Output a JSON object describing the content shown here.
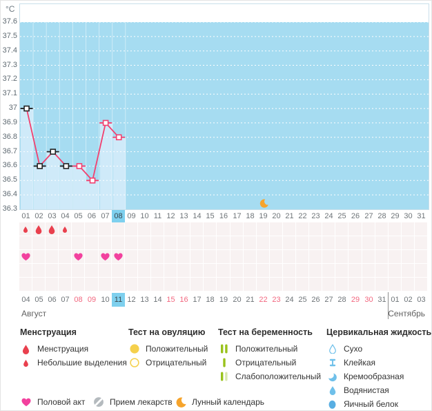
{
  "chart_data": {
    "type": "line",
    "unit": "°C",
    "ylim": [
      36.3,
      37.6
    ],
    "grid": "dotted-horizontal",
    "y_ticks": [
      "37.6",
      "37.5",
      "37.4",
      "37.3",
      "37.2",
      "37.1",
      "37",
      "36.9",
      "36.8",
      "36.7",
      "36.6",
      "36.5",
      "36.4",
      "36.3"
    ],
    "x_days": [
      "01",
      "02",
      "03",
      "04",
      "05",
      "06",
      "07",
      "08",
      "09",
      "10",
      "11",
      "12",
      "13",
      "14",
      "15",
      "16",
      "17",
      "18",
      "19",
      "20",
      "21",
      "22",
      "23",
      "24",
      "25",
      "26",
      "27",
      "28",
      "29",
      "30",
      "31"
    ],
    "selected_day": 8,
    "points": [
      {
        "day": 1,
        "temp": 37.0,
        "excluded": true
      },
      {
        "day": 2,
        "temp": 36.6,
        "excluded": true
      },
      {
        "day": 3,
        "temp": 36.7,
        "excluded": true
      },
      {
        "day": 4,
        "temp": 36.6,
        "excluded": true
      },
      {
        "day": 5,
        "temp": 36.6,
        "excluded": false
      },
      {
        "day": 6,
        "temp": 36.5,
        "excluded": false
      },
      {
        "day": 7,
        "temp": 36.9,
        "excluded": false
      },
      {
        "day": 8,
        "temp": 36.8,
        "excluded": false
      }
    ],
    "lunar_event_day": 19
  },
  "events": {
    "menstruation": [
      {
        "day": 1,
        "intensity": "light"
      },
      {
        "day": 2,
        "intensity": "heavy"
      },
      {
        "day": 3,
        "intensity": "heavy"
      },
      {
        "day": 4,
        "intensity": "light"
      }
    ],
    "intercourse_days": [
      1,
      5,
      7,
      8
    ],
    "grid_rows": 5
  },
  "calendar": {
    "month_left": "Август",
    "month_right": "Сентябрь",
    "today_index": 7,
    "september_start_index": 28,
    "dates": [
      {
        "label": "04",
        "weekend": false
      },
      {
        "label": "05",
        "weekend": false
      },
      {
        "label": "06",
        "weekend": false
      },
      {
        "label": "07",
        "weekend": false
      },
      {
        "label": "08",
        "weekend": true
      },
      {
        "label": "09",
        "weekend": true
      },
      {
        "label": "10",
        "weekend": false
      },
      {
        "label": "11",
        "weekend": false
      },
      {
        "label": "12",
        "weekend": false
      },
      {
        "label": "13",
        "weekend": false
      },
      {
        "label": "14",
        "weekend": false
      },
      {
        "label": "15",
        "weekend": true
      },
      {
        "label": "16",
        "weekend": true
      },
      {
        "label": "17",
        "weekend": false
      },
      {
        "label": "18",
        "weekend": false
      },
      {
        "label": "19",
        "weekend": false
      },
      {
        "label": "20",
        "weekend": false
      },
      {
        "label": "21",
        "weekend": false
      },
      {
        "label": "22",
        "weekend": true
      },
      {
        "label": "23",
        "weekend": true
      },
      {
        "label": "24",
        "weekend": false
      },
      {
        "label": "25",
        "weekend": false
      },
      {
        "label": "26",
        "weekend": false
      },
      {
        "label": "27",
        "weekend": false
      },
      {
        "label": "28",
        "weekend": false
      },
      {
        "label": "29",
        "weekend": true
      },
      {
        "label": "30",
        "weekend": true
      },
      {
        "label": "31",
        "weekend": false
      },
      {
        "label": "01",
        "weekend": false
      },
      {
        "label": "02",
        "weekend": false
      },
      {
        "label": "03",
        "weekend": false
      }
    ]
  },
  "legend": {
    "groups": [
      {
        "title": "Менструация",
        "items": [
          {
            "icon": "menstruation-drop",
            "label": "Менструация"
          },
          {
            "icon": "spotting-drop",
            "label": "Небольшие выделения"
          }
        ]
      },
      {
        "title": "Тест на овуляцию",
        "items": [
          {
            "icon": "ovulation-positive",
            "label": "Положительный"
          },
          {
            "icon": "ovulation-negative",
            "label": "Отрицательный"
          }
        ]
      },
      {
        "title": "Тест на беременность",
        "items": [
          {
            "icon": "pregnancy-positive",
            "label": "Положительный"
          },
          {
            "icon": "pregnancy-negative",
            "label": "Отрицательный"
          },
          {
            "icon": "pregnancy-weak-positive",
            "label": "Слабоположительный"
          }
        ]
      },
      {
        "title": "Цервикальная жидкость",
        "items": [
          {
            "icon": "fluid-dry",
            "label": "Сухо"
          },
          {
            "icon": "fluid-sticky",
            "label": "Клейкая"
          },
          {
            "icon": "fluid-creamy",
            "label": "Кремообразная"
          },
          {
            "icon": "fluid-watery",
            "label": "Водянистая"
          },
          {
            "icon": "fluid-eggwhite",
            "label": "Яичный белок"
          }
        ]
      }
    ],
    "footer_items": [
      {
        "icon": "intercourse-heart",
        "label": "Половой акт"
      },
      {
        "icon": "medication-pill",
        "label": "Прием лекарств"
      },
      {
        "icon": "lunar-moon",
        "label": "Лунный календарь"
      }
    ]
  },
  "colors": {
    "chart_blue_bg": "#a6dcf1",
    "column_fill": "#cfeaf9",
    "day_highlight": "#7ed0ee",
    "line_pink": "#f2406f",
    "marker_excluded": "#222222",
    "menstruation_red": "#e9404e",
    "intercourse_pink": "#f2419e",
    "moon_orange": "#f6a42c",
    "ovulation_yellow": "#f5d04c",
    "pregnancy_green": "#99c21c",
    "pregnancy_green_pale": "#d9e8ae",
    "fluid_blue": "#6fc0ea",
    "fluid_blue_dark": "#58aee2",
    "pill_gray": "#b4babe",
    "weekend_pink": "#f2677f"
  }
}
